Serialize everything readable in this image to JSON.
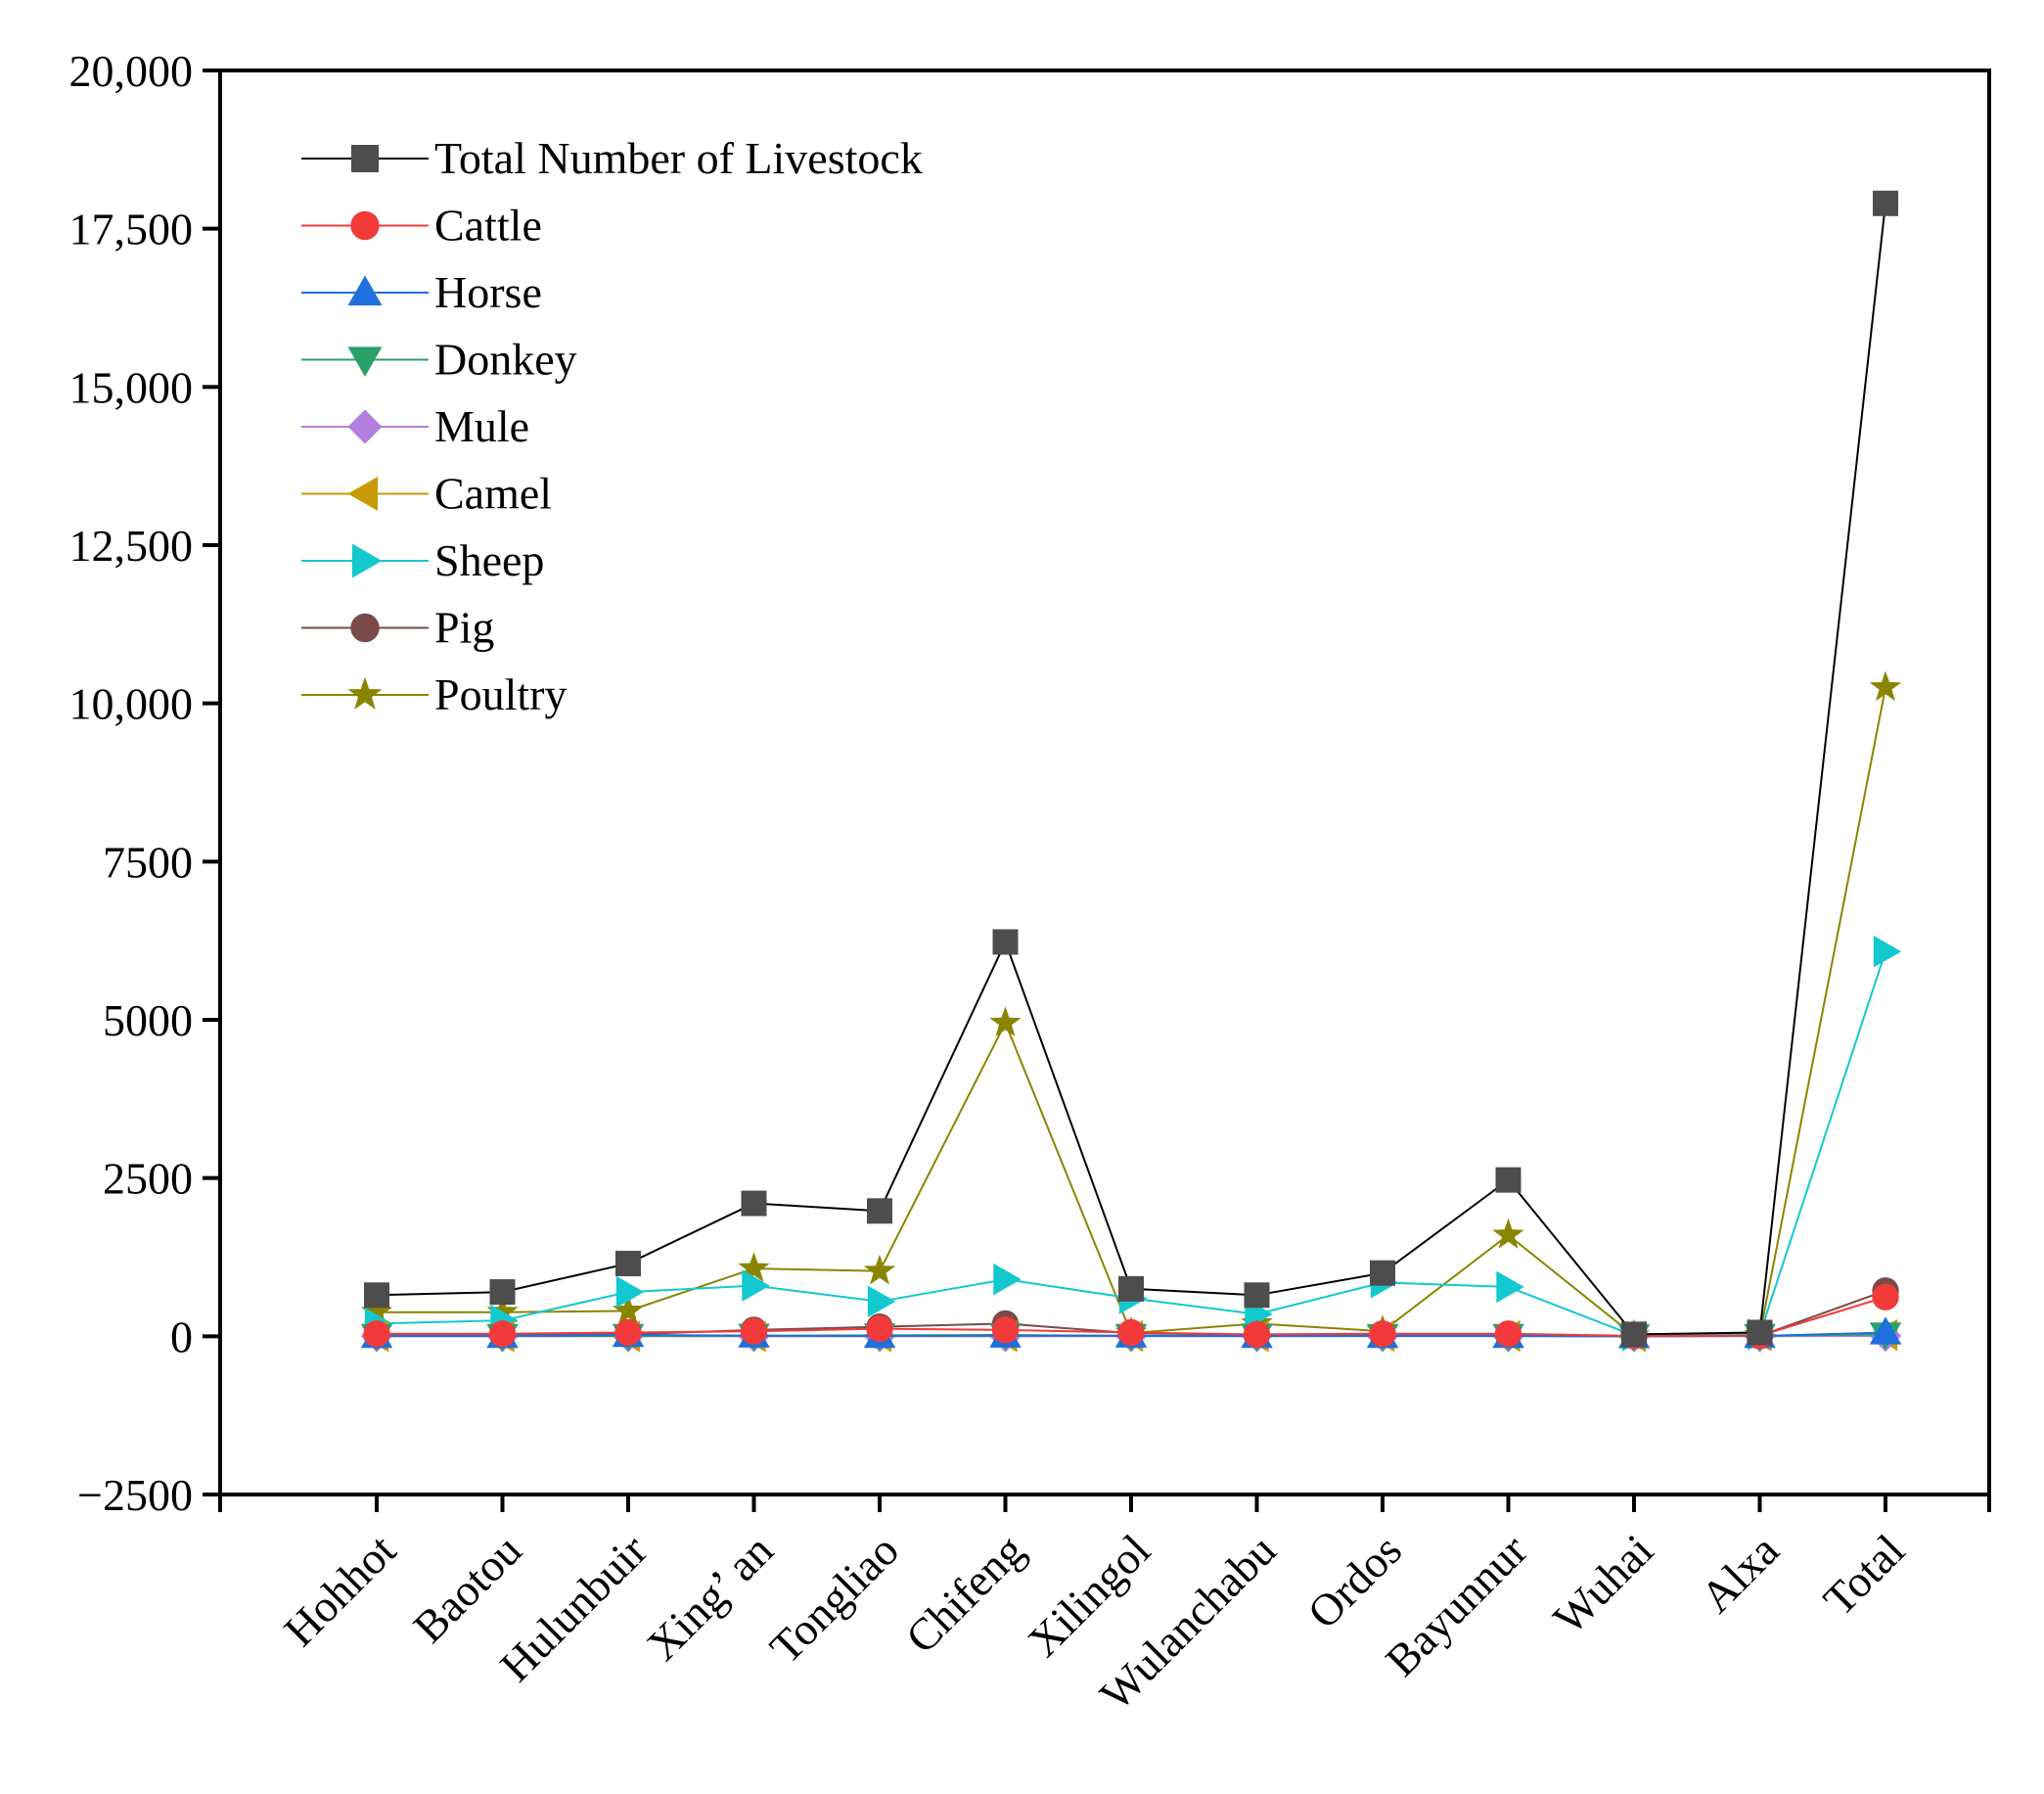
{
  "chart_data": {
    "type": "line",
    "title": "",
    "xlabel": "",
    "ylabel": "",
    "ylim": [
      -2500,
      20000
    ],
    "yticks": [
      -2500,
      0,
      2500,
      5000,
      7500,
      10000,
      12500,
      15000,
      17500,
      20000
    ],
    "ytick_labels": [
      "−2500",
      "0",
      "2500",
      "5000",
      "7500",
      "10,000",
      "12,500",
      "15,000",
      "17,500",
      "20,000"
    ],
    "categories": [
      "Hohhot",
      "Baotou",
      "Hulunbuir",
      "Xing’ an",
      "Tongliao",
      "Chifeng",
      "Xilingol",
      "Wulanchabu",
      "Ordos",
      "Bayunnur",
      "Wuhai",
      "Alxa",
      "Total"
    ],
    "legend_position": "top-left",
    "grid": false,
    "series": [
      {
        "name": "Total Number of Livestock",
        "color": "#4d4d4d",
        "line_color": "#000000",
        "marker": "square",
        "values": [
          650,
          700,
          1150,
          2100,
          1980,
          6230,
          750,
          650,
          1000,
          2470,
          30,
          60,
          17900
        ]
      },
      {
        "name": "Cattle",
        "color": "#f23a3a",
        "line_color": "#f23a3a",
        "marker": "circle",
        "values": [
          40,
          40,
          60,
          80,
          120,
          100,
          60,
          30,
          40,
          40,
          5,
          10,
          620
        ]
      },
      {
        "name": "Horse",
        "color": "#1f6fdc",
        "line_color": "#1f6fdc",
        "marker": "triangle-up",
        "values": [
          5,
          5,
          20,
          10,
          5,
          10,
          10,
          5,
          5,
          5,
          0,
          5,
          60
        ]
      },
      {
        "name": "Donkey",
        "color": "#2aa06a",
        "line_color": "#2aa06a",
        "marker": "triangle-down",
        "values": [
          5,
          5,
          5,
          10,
          15,
          20,
          5,
          5,
          5,
          5,
          0,
          5,
          30
        ]
      },
      {
        "name": "Mule",
        "color": "#b27fe0",
        "line_color": "#b27fe0",
        "marker": "diamond",
        "values": [
          0,
          0,
          0,
          0,
          0,
          0,
          0,
          0,
          0,
          0,
          0,
          0,
          5
        ]
      },
      {
        "name": "Camel",
        "color": "#c99a06",
        "line_color": "#c99a06",
        "marker": "triangle-left",
        "values": [
          0,
          0,
          0,
          0,
          0,
          0,
          5,
          0,
          5,
          5,
          0,
          10,
          20
        ]
      },
      {
        "name": "Sheep",
        "color": "#14c8d0",
        "line_color": "#14c8d0",
        "marker": "triangle-right",
        "values": [
          200,
          250,
          700,
          800,
          550,
          900,
          600,
          350,
          850,
          780,
          10,
          30,
          6080
        ]
      },
      {
        "name": "Pig",
        "color": "#7a4a4a",
        "line_color": "#7a4a4a",
        "marker": "circle",
        "values": [
          20,
          20,
          30,
          100,
          150,
          200,
          50,
          20,
          30,
          20,
          5,
          5,
          720
        ]
      },
      {
        "name": "Poultry",
        "color": "#8a8500",
        "line_color": "#8a8500",
        "marker": "star",
        "values": [
          380,
          380,
          400,
          1070,
          1030,
          4950,
          50,
          200,
          80,
          1600,
          10,
          20,
          10250
        ]
      }
    ]
  }
}
